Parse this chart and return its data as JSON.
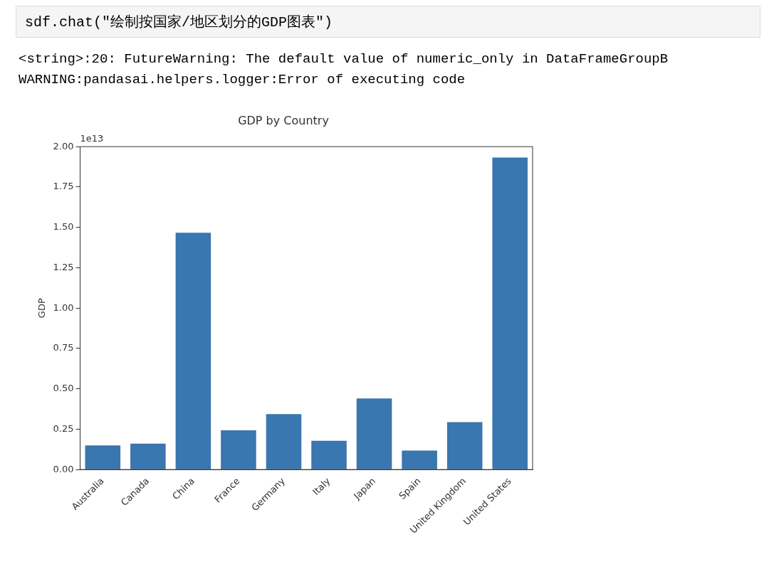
{
  "chart_data": {
    "type": "bar",
    "title": "GDP by Country",
    "ylabel": "GDP",
    "categories": [
      "Australia",
      "Canada",
      "China",
      "France",
      "Germany",
      "Italy",
      "Japan",
      "Spain",
      "United Kingdom",
      "United States"
    ],
    "values": [
      0.15,
      0.16,
      1.467,
      0.243,
      0.343,
      0.178,
      0.44,
      0.118,
      0.294,
      1.933
    ],
    "color": "#3a76af",
    "ylim": [
      0,
      2
    ],
    "yticks": [
      {
        "value": 0,
        "label": "0.00"
      },
      {
        "value": 0.25,
        "label": "0.25"
      },
      {
        "value": 0.5,
        "label": "0.50"
      },
      {
        "value": 0.75,
        "label": "0.75"
      },
      {
        "value": 1,
        "label": "1.00"
      },
      {
        "value": 1.25,
        "label": "1.25"
      },
      {
        "value": 1.5,
        "label": "1.50"
      },
      {
        "value": 1.75,
        "label": "1.75"
      },
      {
        "value": 2,
        "label": "2.00"
      }
    ],
    "grid": false,
    "annotations": [
      "sdf.chat(\"绘制按国家/地区划分的GDP图表\")",
      "<string>:20: FutureWarning: The default value of numeric_only in DataFrameGroupB",
      "WARNING:pandasai.helpers.logger:Error of executing code",
      "1e13"
    ]
  }
}
